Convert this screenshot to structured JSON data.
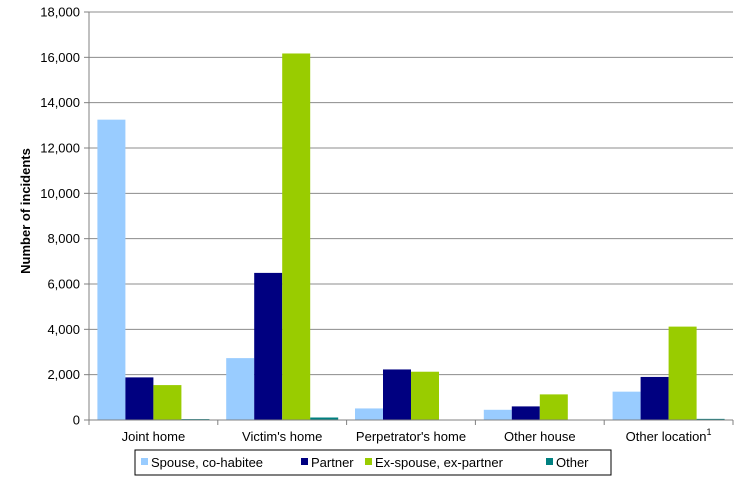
{
  "chart_data": {
    "type": "bar",
    "categories": [
      "Joint home",
      "Victim's home",
      "Perpetrator's home",
      "Other house",
      "Other location"
    ],
    "category_superscripts": [
      "",
      "",
      "",
      "",
      "1"
    ],
    "series": [
      {
        "name": "Spouse, co-habitee",
        "color": "#99ccff",
        "values": [
          13250,
          2730,
          510,
          450,
          1250
        ]
      },
      {
        "name": "Partner",
        "color": "#000080",
        "values": [
          1880,
          6490,
          2230,
          600,
          1900
        ]
      },
      {
        "name": "Ex-spouse, ex-partner",
        "color": "#99cc00",
        "values": [
          1540,
          16170,
          2130,
          1130,
          4120
        ]
      },
      {
        "name": "Other",
        "color": "#008080",
        "values": [
          40,
          110,
          20,
          10,
          50
        ]
      }
    ],
    "ylabel": "Number of incidents",
    "ylim": [
      0,
      18000
    ],
    "yticks": [
      0,
      2000,
      4000,
      6000,
      8000,
      10000,
      12000,
      14000,
      16000,
      18000
    ],
    "ytick_labels": [
      "0",
      "2,000",
      "4,000",
      "6,000",
      "8,000",
      "10,000",
      "12,000",
      "14,000",
      "16,000",
      "18,000"
    ],
    "grid": true,
    "legend_position": "bottom"
  }
}
